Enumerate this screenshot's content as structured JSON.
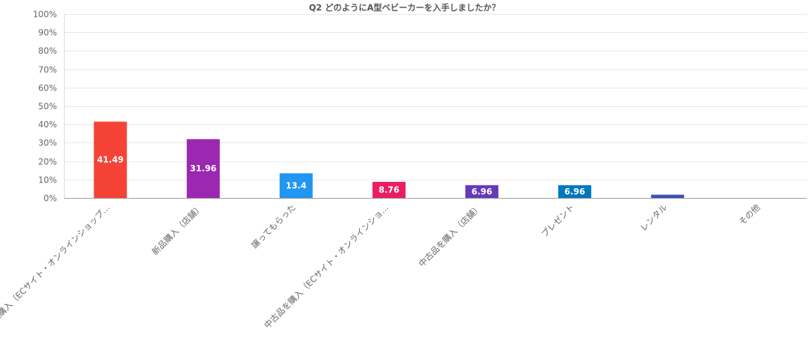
{
  "chart_data": {
    "type": "bar",
    "title": "Q2 どのようにA型ベビーカーを入手しましたか？",
    "xlabel": "",
    "ylabel": "",
    "ylim": [
      0,
      100
    ],
    "y_tick_values": [
      0,
      10,
      20,
      30,
      40,
      50,
      60,
      70,
      80,
      90,
      100
    ],
    "y_tick_labels": [
      "0%",
      "10%",
      "20%",
      "30%",
      "40%",
      "50%",
      "60%",
      "70%",
      "80%",
      "90%",
      "100%"
    ],
    "grid": true,
    "legend": "none",
    "categories": [
      "新品購入（ECサイト・オンラインショップ…",
      "新品購入（店舗）",
      "譲ってもらった",
      "中古品を購入（ECサイト・オンラインショ…",
      "中古品を購入（店舗）",
      "プレゼント",
      "レンタル",
      "その他"
    ],
    "values": [
      41.49,
      31.96,
      13.4,
      8.76,
      6.96,
      6.96,
      1.78,
      0
    ],
    "data_labels": [
      "41.49",
      "31.96",
      "13.4",
      "8.76",
      "6.96",
      "6.96",
      "",
      ""
    ],
    "colors": [
      "#f44336",
      "#9c27b0",
      "#2196f3",
      "#e91e63",
      "#673ab7",
      "#0277bd",
      "#3f51b5",
      "#00897b"
    ]
  }
}
